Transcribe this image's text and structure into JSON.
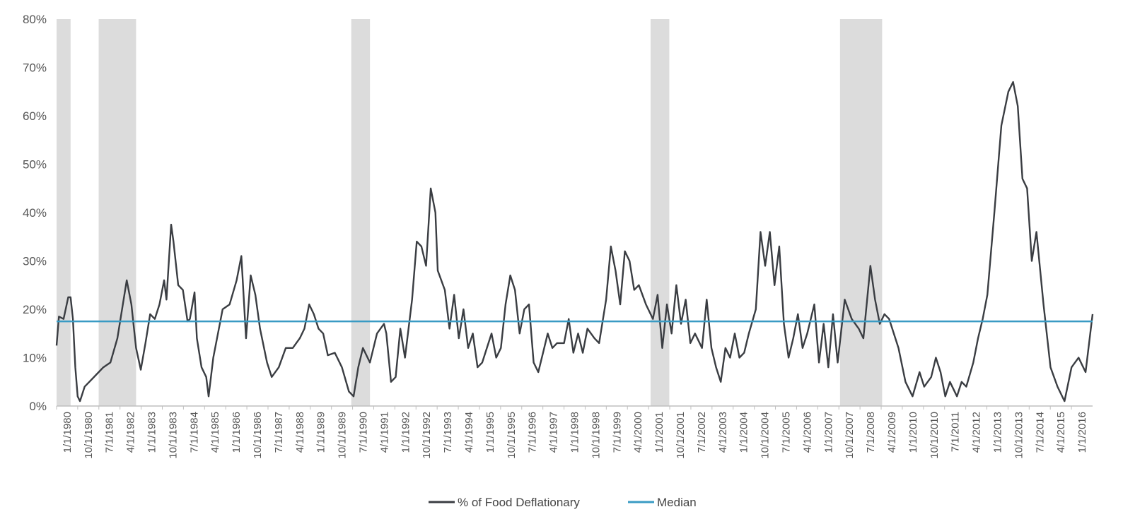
{
  "chart_data": {
    "type": "line",
    "title": "",
    "xlabel": "",
    "ylabel": "",
    "x_range": [
      "1980-01",
      "2016-12"
    ],
    "ylim": [
      0,
      80
    ],
    "y_ticks": [
      0,
      10,
      20,
      30,
      40,
      50,
      60,
      70,
      80
    ],
    "y_tick_labels": [
      "0%",
      "10%",
      "20%",
      "30%",
      "40%",
      "50%",
      "60%",
      "70%",
      "80%"
    ],
    "x_tick_labels": [
      "1/1/1980",
      "10/1/1980",
      "7/1/1981",
      "4/1/1982",
      "1/1/1983",
      "10/1/1983",
      "7/1/1984",
      "4/1/1985",
      "1/1/1986",
      "10/1/1986",
      "7/1/1987",
      "4/1/1988",
      "1/1/1989",
      "10/1/1989",
      "7/1/1990",
      "4/1/1991",
      "1/1/1992",
      "10/1/1992",
      "7/1/1993",
      "4/1/1994",
      "1/1/1995",
      "10/1/1995",
      "7/1/1996",
      "4/1/1997",
      "1/1/1998",
      "10/1/1998",
      "7/1/1999",
      "4/1/2000",
      "1/1/2001",
      "10/1/2001",
      "7/1/2002",
      "4/1/2003",
      "1/1/2004",
      "10/1/2004",
      "7/1/2005",
      "4/1/2006",
      "1/1/2007",
      "10/1/2007",
      "7/1/2008",
      "4/1/2009",
      "1/1/2010",
      "10/1/2010",
      "7/1/2011",
      "4/1/2012",
      "1/1/2013",
      "10/1/2013",
      "7/1/2014",
      "4/1/2015",
      "1/1/2016"
    ],
    "grid": false,
    "legend_position": "bottom",
    "shaded_periods": [
      {
        "start": "1980-01",
        "end": "1980-07"
      },
      {
        "start": "1981-07",
        "end": "1982-11"
      },
      {
        "start": "1990-07",
        "end": "1991-03"
      },
      {
        "start": "2001-03",
        "end": "2001-11"
      },
      {
        "start": "2007-12",
        "end": "2009-06"
      }
    ],
    "shade_color": "#dcdcdc",
    "series": [
      {
        "name": "% of Food Deflationary",
        "color": "#3a3d42",
        "points": [
          [
            "1980-01",
            12.5
          ],
          [
            "1980-02",
            18.5
          ],
          [
            "1980-04",
            18
          ],
          [
            "1980-06",
            22.5
          ],
          [
            "1980-07",
            22.5
          ],
          [
            "1980-08",
            18
          ],
          [
            "1980-09",
            8
          ],
          [
            "1980-10",
            2
          ],
          [
            "1980-11",
            1
          ],
          [
            "1981-01",
            4
          ],
          [
            "1981-03",
            5
          ],
          [
            "1981-06",
            6.5
          ],
          [
            "1981-09",
            8
          ],
          [
            "1981-12",
            9
          ],
          [
            "1982-03",
            14
          ],
          [
            "1982-06",
            23
          ],
          [
            "1982-07",
            26
          ],
          [
            "1982-09",
            21
          ],
          [
            "1982-11",
            12
          ],
          [
            "1983-01",
            7.5
          ],
          [
            "1983-03",
            13
          ],
          [
            "1983-05",
            19
          ],
          [
            "1983-07",
            18
          ],
          [
            "1983-09",
            21
          ],
          [
            "1983-11",
            26
          ],
          [
            "1983-12",
            22
          ],
          [
            "1984-02",
            37.5
          ],
          [
            "1984-03",
            34
          ],
          [
            "1984-05",
            25
          ],
          [
            "1984-07",
            24
          ],
          [
            "1984-09",
            17.5
          ],
          [
            "1984-10",
            18
          ],
          [
            "1984-12",
            23.5
          ],
          [
            "1985-01",
            14
          ],
          [
            "1985-03",
            8
          ],
          [
            "1985-05",
            6
          ],
          [
            "1985-06",
            2
          ],
          [
            "1985-08",
            10
          ],
          [
            "1985-10",
            15
          ],
          [
            "1985-12",
            20
          ],
          [
            "1986-03",
            21
          ],
          [
            "1986-06",
            26
          ],
          [
            "1986-08",
            31
          ],
          [
            "1986-10",
            14
          ],
          [
            "1986-12",
            27
          ],
          [
            "1987-02",
            23
          ],
          [
            "1987-04",
            16
          ],
          [
            "1987-07",
            9
          ],
          [
            "1987-09",
            6
          ],
          [
            "1987-12",
            8
          ],
          [
            "1988-03",
            12
          ],
          [
            "1988-06",
            12
          ],
          [
            "1988-09",
            14
          ],
          [
            "1988-11",
            16
          ],
          [
            "1989-01",
            21
          ],
          [
            "1989-03",
            19
          ],
          [
            "1989-05",
            16
          ],
          [
            "1989-07",
            15
          ],
          [
            "1989-09",
            10.5
          ],
          [
            "1989-12",
            11
          ],
          [
            "1990-03",
            8
          ],
          [
            "1990-06",
            3
          ],
          [
            "1990-08",
            2
          ],
          [
            "1990-10",
            8
          ],
          [
            "1990-12",
            12
          ],
          [
            "1991-03",
            9
          ],
          [
            "1991-06",
            15
          ],
          [
            "1991-09",
            17
          ],
          [
            "1991-10",
            15
          ],
          [
            "1991-12",
            5
          ],
          [
            "1992-02",
            6
          ],
          [
            "1992-04",
            16
          ],
          [
            "1992-06",
            10
          ],
          [
            "1992-09",
            22
          ],
          [
            "1992-11",
            34
          ],
          [
            "1993-01",
            33
          ],
          [
            "1993-03",
            29
          ],
          [
            "1993-05",
            45
          ],
          [
            "1993-07",
            40
          ],
          [
            "1993-08",
            28
          ],
          [
            "1993-11",
            24
          ],
          [
            "1994-01",
            16
          ],
          [
            "1994-03",
            23
          ],
          [
            "1994-05",
            14
          ],
          [
            "1994-07",
            20
          ],
          [
            "1994-09",
            12
          ],
          [
            "1994-11",
            15
          ],
          [
            "1995-01",
            8
          ],
          [
            "1995-03",
            9
          ],
          [
            "1995-05",
            12
          ],
          [
            "1995-07",
            15
          ],
          [
            "1995-09",
            10
          ],
          [
            "1995-11",
            12
          ],
          [
            "1996-01",
            21
          ],
          [
            "1996-03",
            27
          ],
          [
            "1996-05",
            24
          ],
          [
            "1996-07",
            15
          ],
          [
            "1996-09",
            20
          ],
          [
            "1996-11",
            21
          ],
          [
            "1997-01",
            9
          ],
          [
            "1997-03",
            7
          ],
          [
            "1997-05",
            11
          ],
          [
            "1997-07",
            15
          ],
          [
            "1997-09",
            12
          ],
          [
            "1997-11",
            13
          ],
          [
            "1998-02",
            13
          ],
          [
            "1998-04",
            18
          ],
          [
            "1998-06",
            11
          ],
          [
            "1998-08",
            15
          ],
          [
            "1998-10",
            11
          ],
          [
            "1998-12",
            16
          ],
          [
            "1999-03",
            14
          ],
          [
            "1999-05",
            13
          ],
          [
            "1999-08",
            22
          ],
          [
            "1999-10",
            33
          ],
          [
            "1999-12",
            28
          ],
          [
            "2000-02",
            21
          ],
          [
            "2000-04",
            32
          ],
          [
            "2000-06",
            30
          ],
          [
            "2000-08",
            24
          ],
          [
            "2000-10",
            25
          ],
          [
            "2001-01",
            21
          ],
          [
            "2001-04",
            18
          ],
          [
            "2001-06",
            23
          ],
          [
            "2001-08",
            12
          ],
          [
            "2001-10",
            21
          ],
          [
            "2001-12",
            15
          ],
          [
            "2002-02",
            25
          ],
          [
            "2002-04",
            17
          ],
          [
            "2002-06",
            22
          ],
          [
            "2002-08",
            13
          ],
          [
            "2002-10",
            15
          ],
          [
            "2003-01",
            12
          ],
          [
            "2003-03",
            22
          ],
          [
            "2003-05",
            12
          ],
          [
            "2003-07",
            8
          ],
          [
            "2003-09",
            5
          ],
          [
            "2003-11",
            12
          ],
          [
            "2004-01",
            10
          ],
          [
            "2004-03",
            15
          ],
          [
            "2004-05",
            10
          ],
          [
            "2004-07",
            11
          ],
          [
            "2004-09",
            15
          ],
          [
            "2004-12",
            20
          ],
          [
            "2005-02",
            36
          ],
          [
            "2005-04",
            29
          ],
          [
            "2005-06",
            36
          ],
          [
            "2005-08",
            25
          ],
          [
            "2005-10",
            33
          ],
          [
            "2005-12",
            17
          ],
          [
            "2006-02",
            10
          ],
          [
            "2006-04",
            14
          ],
          [
            "2006-06",
            19
          ],
          [
            "2006-08",
            12
          ],
          [
            "2006-10",
            15
          ],
          [
            "2007-01",
            21
          ],
          [
            "2007-03",
            9
          ],
          [
            "2007-05",
            17
          ],
          [
            "2007-07",
            8
          ],
          [
            "2007-09",
            19
          ],
          [
            "2007-11",
            9
          ],
          [
            "2008-02",
            22
          ],
          [
            "2008-05",
            18
          ],
          [
            "2008-08",
            16
          ],
          [
            "2008-10",
            14
          ],
          [
            "2009-01",
            29
          ],
          [
            "2009-03",
            22
          ],
          [
            "2009-05",
            17
          ],
          [
            "2009-07",
            19
          ],
          [
            "2009-09",
            18
          ],
          [
            "2010-01",
            12
          ],
          [
            "2010-04",
            5
          ],
          [
            "2010-07",
            2
          ],
          [
            "2010-10",
            7
          ],
          [
            "2010-12",
            4
          ],
          [
            "2011-03",
            6
          ],
          [
            "2011-05",
            10
          ],
          [
            "2011-07",
            7
          ],
          [
            "2011-09",
            2
          ],
          [
            "2011-11",
            5
          ],
          [
            "2012-02",
            2
          ],
          [
            "2012-04",
            5
          ],
          [
            "2012-06",
            4
          ],
          [
            "2012-09",
            9
          ],
          [
            "2012-11",
            14
          ],
          [
            "2013-01",
            18
          ],
          [
            "2013-03",
            23
          ],
          [
            "2013-06",
            40
          ],
          [
            "2013-09",
            58
          ],
          [
            "2013-12",
            65
          ],
          [
            "2014-02",
            67
          ],
          [
            "2014-04",
            62
          ],
          [
            "2014-06",
            47
          ],
          [
            "2014-08",
            45
          ],
          [
            "2014-10",
            30
          ],
          [
            "2014-12",
            36
          ],
          [
            "2015-03",
            21
          ],
          [
            "2015-06",
            8
          ],
          [
            "2015-09",
            4
          ],
          [
            "2015-12",
            1
          ],
          [
            "2016-03",
            8
          ],
          [
            "2016-06",
            10
          ],
          [
            "2016-09",
            7
          ],
          [
            "2016-12",
            19
          ]
        ]
      },
      {
        "name": "Median",
        "color": "#3a9bc4",
        "points": [
          [
            "1980-01",
            17.5
          ],
          [
            "2016-12",
            17.5
          ]
        ]
      }
    ]
  }
}
